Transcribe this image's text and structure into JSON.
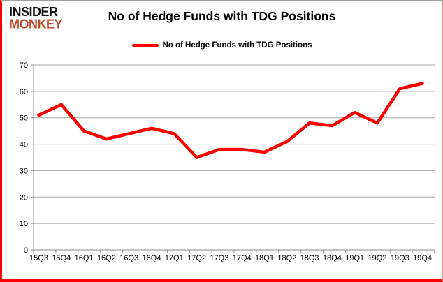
{
  "logo": {
    "line1": "INSIDER",
    "line2": "MONKEY"
  },
  "header": {
    "title": "No of Hedge Funds with TDG Positions"
  },
  "legend": {
    "label": "No of Hedge Funds with TDG Positions"
  },
  "colors": {
    "line": "#fe0000",
    "logo_black": "#151515",
    "logo_red": "#c04a2e",
    "grid": "#a6a6a6",
    "axis": "#898989",
    "text": "#000000",
    "frame_red": "#fb0007",
    "frame_gray": "#9e9e9e"
  },
  "chart_data": {
    "type": "line",
    "title": "No of Hedge Funds with TDG Positions",
    "categories": [
      "15Q3",
      "15Q4",
      "16Q1",
      "16Q2",
      "16Q3",
      "16Q4",
      "17Q1",
      "17Q2",
      "17Q3",
      "17Q4",
      "18Q1",
      "18Q2",
      "18Q3",
      "18Q4",
      "19Q1",
      "19Q2",
      "19Q3",
      "19Q4"
    ],
    "series": [
      {
        "name": "No of Hedge Funds with TDG Positions",
        "values": [
          51,
          55,
          45,
          42,
          44,
          46,
          44,
          35,
          38,
          38,
          37,
          41,
          48,
          47,
          52,
          48,
          61,
          63
        ]
      }
    ],
    "xlabel": "",
    "ylabel": "",
    "ylim": [
      0,
      70
    ],
    "yticks": [
      0,
      10,
      20,
      30,
      40,
      50,
      60,
      70
    ],
    "grid": "horizontal-only",
    "legend_position": "top-center",
    "markers": false
  }
}
